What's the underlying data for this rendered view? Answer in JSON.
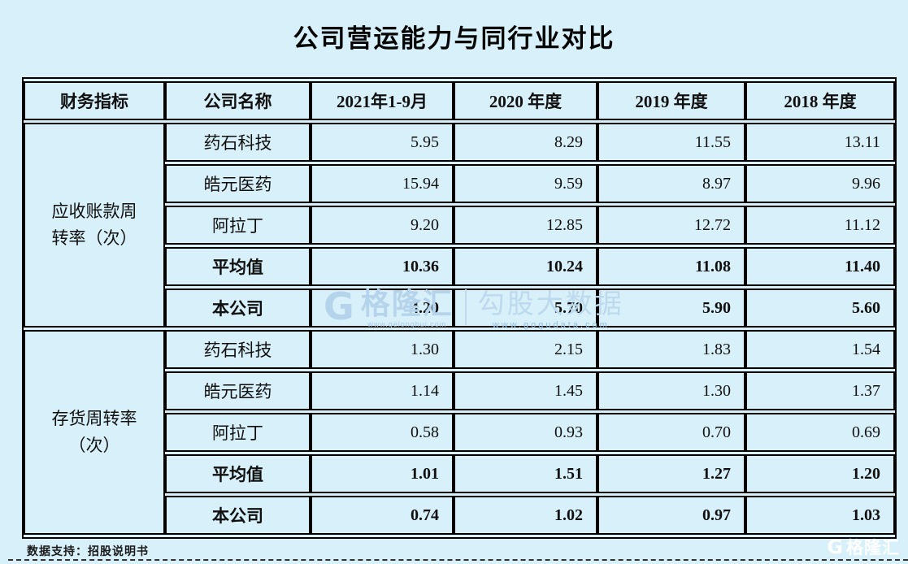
{
  "title": "公司营运能力与同行业对比",
  "chart_data": {
    "type": "table",
    "title": "公司营运能力与同行业对比",
    "columns": [
      "财务指标",
      "公司名称",
      "2021年1-9月",
      "2020 年度",
      "2019 年度",
      "2018 年度"
    ],
    "groups": [
      {
        "indicator": "应收账款周转率（次）",
        "rows": [
          {
            "company": "药石科技",
            "values": [
              5.95,
              8.29,
              11.55,
              13.11
            ],
            "emphasis": false
          },
          {
            "company": "皓元医药",
            "values": [
              15.94,
              9.59,
              8.97,
              9.96
            ],
            "emphasis": false
          },
          {
            "company": "阿拉丁",
            "values": [
              9.2,
              12.85,
              12.72,
              11.12
            ],
            "emphasis": false
          },
          {
            "company": "平均值",
            "values": [
              10.36,
              10.24,
              11.08,
              11.4
            ],
            "emphasis": true
          },
          {
            "company": "本公司",
            "values": [
              4.2,
              5.7,
              5.9,
              5.6
            ],
            "emphasis": true
          }
        ]
      },
      {
        "indicator": "存货周转率（次）",
        "rows": [
          {
            "company": "药石科技",
            "values": [
              1.3,
              2.15,
              1.83,
              1.54
            ],
            "emphasis": false
          },
          {
            "company": "皓元医药",
            "values": [
              1.14,
              1.45,
              1.3,
              1.37
            ],
            "emphasis": false
          },
          {
            "company": "阿拉丁",
            "values": [
              0.58,
              0.93,
              0.7,
              0.69
            ],
            "emphasis": false
          },
          {
            "company": "平均值",
            "values": [
              1.01,
              1.51,
              1.27,
              1.2
            ],
            "emphasis": true
          },
          {
            "company": "本公司",
            "values": [
              0.74,
              1.02,
              0.97,
              1.03
            ],
            "emphasis": true
          }
        ]
      }
    ]
  },
  "watermark": {
    "brand": "格隆汇",
    "brand_url": "www.gelonghui.com",
    "partner": "勾股大数据",
    "partner_url": "www.gogudata.com",
    "g_glyph": "G"
  },
  "footer": {
    "source_label": "数据支持：招股说明书"
  },
  "corner_logo": {
    "text": "格隆汇",
    "g_glyph": "G"
  },
  "colors": {
    "background": "#d8f0f9",
    "table_border": "#000000",
    "text": "#101010",
    "watermark_blue": "#b5d4ec",
    "watermark_url_blue": "#8fc0e6",
    "corner_logo_white": "#ffffff"
  }
}
